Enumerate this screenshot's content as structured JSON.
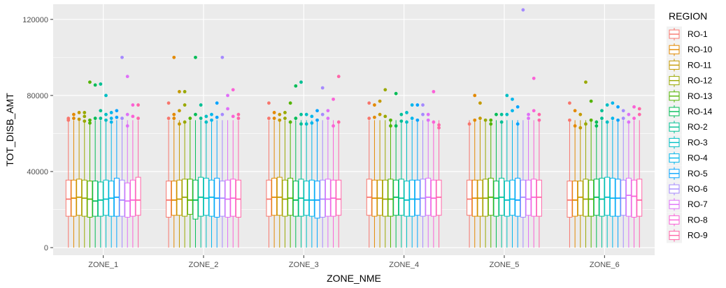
{
  "chart_data": {
    "type": "boxplot",
    "xlabel": "ZONE_NME",
    "ylabel": "TOT_DISB_AMT",
    "categories": [
      "ZONE_1",
      "ZONE_2",
      "ZONE_3",
      "ZONE_4",
      "ZONE_5",
      "ZONE_6"
    ],
    "ylim": [
      -4000,
      128000
    ],
    "yticks": [
      0,
      40000,
      80000,
      120000
    ],
    "ytick_labels": [
      "0",
      "40000",
      "80000",
      "120000"
    ],
    "grid": true,
    "legend": {
      "title": "REGION",
      "position": "right",
      "entries": [
        "RO-1",
        "RO-10",
        "RO-11",
        "RO-12",
        "RO-13",
        "RO-14",
        "RO-2",
        "RO-3",
        "RO-4",
        "RO-5",
        "RO-6",
        "RO-7",
        "RO-8",
        "RO-9"
      ]
    },
    "colors": [
      "#F8766D",
      "#E38900",
      "#C49A00",
      "#99A800",
      "#53B400",
      "#00BC56",
      "#00C094",
      "#00BFC4",
      "#00B6EB",
      "#06A4FF",
      "#A58AFF",
      "#DF70F8",
      "#FB61D7",
      "#FF66A8"
    ],
    "whisker_low": 0,
    "whisker_high": 67000,
    "series": [
      {
        "zone": "ZONE_1",
        "boxes": [
          {
            "region": "RO-1",
            "q1": 16500,
            "median": 25500,
            "q3": 35500,
            "outliers": [
              67000,
              68000
            ]
          },
          {
            "region": "RO-10",
            "q1": 16500,
            "median": 26000,
            "q3": 35500,
            "outliers": [
              68000,
              70000
            ]
          },
          {
            "region": "RO-11",
            "q1": 17000,
            "median": 26500,
            "q3": 36000,
            "outliers": [
              67500,
              71000
            ]
          },
          {
            "region": "RO-12",
            "q1": 16500,
            "median": 26000,
            "q3": 35500,
            "outliers": [
              66500,
              69000,
              71000
            ]
          },
          {
            "region": "RO-13",
            "q1": 16000,
            "median": 25500,
            "q3": 35000,
            "outliers": [
              65500,
              67000,
              87000
            ]
          },
          {
            "region": "RO-14",
            "q1": 16500,
            "median": 24500,
            "q3": 35000,
            "outliers": [
              68000,
              85500
            ]
          },
          {
            "region": "RO-2",
            "q1": 16500,
            "median": 25000,
            "q3": 34500,
            "outliers": [
              68000,
              72000,
              86000
            ]
          },
          {
            "region": "RO-3",
            "q1": 17000,
            "median": 25500,
            "q3": 35500,
            "outliers": [
              67000,
              70000,
              80000
            ]
          },
          {
            "region": "RO-4",
            "q1": 16500,
            "median": 26000,
            "q3": 35000,
            "outliers": [
              66000,
              68000,
              71000
            ]
          },
          {
            "region": "RO-5",
            "q1": 16500,
            "median": 26500,
            "q3": 36500,
            "outliers": [
              68500,
              72000
            ]
          },
          {
            "region": "RO-6",
            "q1": 16500,
            "median": 25000,
            "q3": 35500,
            "outliers": [
              68000,
              100000
            ]
          },
          {
            "region": "RO-7",
            "q1": 16000,
            "median": 24500,
            "q3": 34000,
            "outliers": [
              64000,
              70000,
              90000
            ]
          },
          {
            "region": "RO-8",
            "q1": 16500,
            "median": 25000,
            "q3": 35500,
            "outliers": [
              69000,
              75000
            ]
          },
          {
            "region": "RO-9",
            "q1": 17000,
            "median": 25000,
            "q3": 37000,
            "outliers": [
              68000,
              75000
            ]
          }
        ]
      },
      {
        "zone": "ZONE_2",
        "boxes": [
          {
            "region": "RO-1",
            "q1": 16000,
            "median": 25000,
            "q3": 35000,
            "outliers": [
              68000,
              76000
            ]
          },
          {
            "region": "RO-10",
            "q1": 17000,
            "median": 25000,
            "q3": 35000,
            "outliers": [
              68000,
              70000,
              100000
            ]
          },
          {
            "region": "RO-11",
            "q1": 17000,
            "median": 25500,
            "q3": 35500,
            "outliers": [
              65000,
              72000,
              82000
            ]
          },
          {
            "region": "RO-12",
            "q1": 16500,
            "median": 26500,
            "q3": 36000,
            "outliers": [
              66000,
              75000,
              82000
            ]
          },
          {
            "region": "RO-13",
            "q1": 17500,
            "median": 25000,
            "q3": 36000,
            "outliers": [
              68000
            ]
          },
          {
            "region": "RO-14",
            "q1": 15000,
            "median": 25000,
            "q3": 35500,
            "outliers": [
              70000,
              100000
            ]
          },
          {
            "region": "RO-2",
            "q1": 16500,
            "median": 26500,
            "q3": 37000,
            "outliers": [
              68000,
              75000
            ]
          },
          {
            "region": "RO-3",
            "q1": 17000,
            "median": 26000,
            "q3": 36500,
            "outliers": [
              66000,
              69000
            ]
          },
          {
            "region": "RO-4",
            "q1": 16500,
            "median": 26500,
            "q3": 35500,
            "outliers": [
              67000,
              70000
            ]
          },
          {
            "region": "RO-5",
            "q1": 16000,
            "median": 26000,
            "q3": 36500,
            "outliers": [
              68500,
              76000
            ]
          },
          {
            "region": "RO-6",
            "q1": 16500,
            "median": 26000,
            "q3": 35000,
            "outliers": [
              70000,
              100000
            ]
          },
          {
            "region": "RO-7",
            "q1": 16000,
            "median": 25500,
            "q3": 35500,
            "outliers": [
              73000,
              80000
            ]
          },
          {
            "region": "RO-8",
            "q1": 16500,
            "median": 26000,
            "q3": 36000,
            "outliers": [
              69000,
              83000
            ]
          },
          {
            "region": "RO-9",
            "q1": 16000,
            "median": 25500,
            "q3": 35500,
            "outliers": [
              68000,
              70000
            ]
          }
        ]
      },
      {
        "zone": "ZONE_3",
        "boxes": [
          {
            "region": "RO-1",
            "q1": 16500,
            "median": 25500,
            "q3": 35500,
            "outliers": [
              68000,
              76000
            ]
          },
          {
            "region": "RO-10",
            "q1": 17000,
            "median": 26500,
            "q3": 36500,
            "outliers": [
              68000,
              71000
            ]
          },
          {
            "region": "RO-11",
            "q1": 17000,
            "median": 26500,
            "q3": 37000,
            "outliers": [
              67000,
              70000
            ]
          },
          {
            "region": "RO-12",
            "q1": 16500,
            "median": 25500,
            "q3": 35500,
            "outliers": [
              68000,
              71000
            ]
          },
          {
            "region": "RO-13",
            "q1": 17000,
            "median": 26000,
            "q3": 36500,
            "outliers": [
              66000,
              76000
            ]
          },
          {
            "region": "RO-14",
            "q1": 16500,
            "median": 25000,
            "q3": 35000,
            "outliers": [
              68000,
              85000
            ]
          },
          {
            "region": "RO-2",
            "q1": 16500,
            "median": 26000,
            "q3": 36000,
            "outliers": [
              65000,
              70000,
              87000
            ]
          },
          {
            "region": "RO-3",
            "q1": 17000,
            "median": 25000,
            "q3": 35000,
            "outliers": [
              65000,
              70000
            ]
          },
          {
            "region": "RO-4",
            "q1": 16500,
            "median": 25000,
            "q3": 35500,
            "outliers": [
              65500,
              69000
            ]
          },
          {
            "region": "RO-5",
            "q1": 15500,
            "median": 25000,
            "q3": 35000,
            "outliers": [
              67000,
              72000
            ]
          },
          {
            "region": "RO-6",
            "q1": 16000,
            "median": 25500,
            "q3": 35500,
            "outliers": [
              70000,
              84000
            ]
          },
          {
            "region": "RO-7",
            "q1": 16500,
            "median": 25500,
            "q3": 36000,
            "outliers": [
              68000,
              72000
            ]
          },
          {
            "region": "RO-8",
            "q1": 16500,
            "median": 26000,
            "q3": 35500,
            "outliers": [
              64000,
              78000
            ]
          },
          {
            "region": "RO-9",
            "q1": 17000,
            "median": 25500,
            "q3": 35500,
            "outliers": [
              66000,
              90000
            ]
          }
        ]
      },
      {
        "zone": "ZONE_4",
        "boxes": [
          {
            "region": "RO-1",
            "q1": 17000,
            "median": 26500,
            "q3": 36000,
            "outliers": [
              68000,
              76000
            ]
          },
          {
            "region": "RO-10",
            "q1": 16500,
            "median": 26000,
            "q3": 35500,
            "outliers": [
              68500,
              75000
            ]
          },
          {
            "region": "RO-11",
            "q1": 17000,
            "median": 26000,
            "q3": 35500,
            "outliers": [
              70000,
              77000
            ]
          },
          {
            "region": "RO-12",
            "q1": 16500,
            "median": 25500,
            "q3": 35500,
            "outliers": [
              69000,
              83000
            ]
          },
          {
            "region": "RO-13",
            "q1": 16500,
            "median": 25500,
            "q3": 36000,
            "outliers": [
              64000,
              67000
            ]
          },
          {
            "region": "RO-14",
            "q1": 17000,
            "median": 26500,
            "q3": 35500,
            "outliers": [
              64000,
              81000
            ]
          },
          {
            "region": "RO-2",
            "q1": 17000,
            "median": 26000,
            "q3": 36000,
            "outliers": [
              66500,
              70000
            ]
          },
          {
            "region": "RO-3",
            "q1": 16500,
            "median": 25000,
            "q3": 35000,
            "outliers": [
              66000,
              71000
            ]
          },
          {
            "region": "RO-4",
            "q1": 16500,
            "median": 25500,
            "q3": 35500,
            "outliers": [
              68000,
              75000
            ]
          },
          {
            "region": "RO-5",
            "q1": 17000,
            "median": 25500,
            "q3": 35500,
            "outliers": [
              67000,
              75000
            ]
          },
          {
            "region": "RO-6",
            "q1": 16500,
            "median": 26000,
            "q3": 36000,
            "outliers": [
              70000,
              75000
            ]
          },
          {
            "region": "RO-7",
            "q1": 17000,
            "median": 26500,
            "q3": 36500,
            "outliers": [
              67000,
              70000
            ]
          },
          {
            "region": "RO-8",
            "q1": 16500,
            "median": 26000,
            "q3": 35500,
            "outliers": [
              66000,
              82000
            ]
          },
          {
            "region": "RO-9",
            "q1": 17000,
            "median": 26500,
            "q3": 35500,
            "outliers": [
              63000,
              64500
            ]
          }
        ]
      },
      {
        "zone": "ZONE_5",
        "boxes": [
          {
            "region": "RO-1",
            "q1": 17000,
            "median": 25500,
            "q3": 35500,
            "outliers": [
              65000
            ]
          },
          {
            "region": "RO-10",
            "q1": 16500,
            "median": 26000,
            "q3": 35500,
            "outliers": [
              67000,
              80000
            ]
          },
          {
            "region": "RO-11",
            "q1": 16500,
            "median": 26000,
            "q3": 35500,
            "outliers": [
              68000,
              76000
            ]
          },
          {
            "region": "RO-12",
            "q1": 16500,
            "median": 26000,
            "q3": 36000,
            "outliers": [
              67000
            ]
          },
          {
            "region": "RO-13",
            "q1": 17000,
            "median": 26500,
            "q3": 36500,
            "outliers": [
              65000,
              67000
            ]
          },
          {
            "region": "RO-14",
            "q1": 16500,
            "median": 26000,
            "q3": 35000,
            "outliers": [
              70000
            ]
          },
          {
            "region": "RO-2",
            "q1": 17000,
            "median": 26500,
            "q3": 36500,
            "outliers": [
              66000,
              70000
            ]
          },
          {
            "region": "RO-3",
            "q1": 16500,
            "median": 25000,
            "q3": 35000,
            "outliers": [
              70000,
              80000
            ]
          },
          {
            "region": "RO-4",
            "q1": 17000,
            "median": 25500,
            "q3": 35500,
            "outliers": [
              72000,
              78000
            ]
          },
          {
            "region": "RO-5",
            "q1": 16500,
            "median": 25000,
            "q3": 36500,
            "outliers": [
              65000,
              74000
            ]
          },
          {
            "region": "RO-6",
            "q1": 16000,
            "median": 26500,
            "q3": 35500,
            "outliers": [
              125000
            ]
          },
          {
            "region": "RO-7",
            "q1": 17000,
            "median": 25500,
            "q3": 35500,
            "outliers": [
              68000,
              70000
            ]
          },
          {
            "region": "RO-8",
            "q1": 16500,
            "median": 26500,
            "q3": 36000,
            "outliers": [
              72000,
              89000
            ]
          },
          {
            "region": "RO-9",
            "q1": 16500,
            "median": 26500,
            "q3": 35500,
            "outliers": [
              67000,
              70000
            ]
          }
        ]
      },
      {
        "zone": "ZONE_6",
        "boxes": [
          {
            "region": "RO-1",
            "q1": 16000,
            "median": 25000,
            "q3": 35000,
            "outliers": [
              67000,
              76000
            ]
          },
          {
            "region": "RO-10",
            "q1": 16500,
            "median": 25000,
            "q3": 35000,
            "outliers": [
              64000,
              72000
            ]
          },
          {
            "region": "RO-11",
            "q1": 17000,
            "median": 26500,
            "q3": 35000,
            "outliers": [
              63000,
              70000
            ]
          },
          {
            "region": "RO-12",
            "q1": 16500,
            "median": 25500,
            "q3": 36000,
            "outliers": [
              65000,
              87000
            ]
          },
          {
            "region": "RO-13",
            "q1": 16500,
            "median": 25500,
            "q3": 35500,
            "outliers": [
              67000,
              77000
            ]
          },
          {
            "region": "RO-14",
            "q1": 17000,
            "median": 26500,
            "q3": 36000,
            "outliers": [
              64000,
              66000
            ]
          },
          {
            "region": "RO-2",
            "q1": 16500,
            "median": 25500,
            "q3": 36500,
            "outliers": [
              68000,
              72000
            ]
          },
          {
            "region": "RO-3",
            "q1": 17000,
            "median": 26500,
            "q3": 37000,
            "outliers": [
              66000,
              75000
            ]
          },
          {
            "region": "RO-4",
            "q1": 16500,
            "median": 26000,
            "q3": 36500,
            "outliers": [
              68000,
              76000
            ]
          },
          {
            "region": "RO-5",
            "q1": 16500,
            "median": 26000,
            "q3": 36000,
            "outliers": [
              67000,
              74000
            ]
          },
          {
            "region": "RO-6",
            "q1": 17000,
            "median": 26000,
            "q3": 35500,
            "outliers": [
              68000,
              72000
            ]
          },
          {
            "region": "RO-7",
            "q1": 16500,
            "median": 27500,
            "q3": 36500,
            "outliers": [
              66000,
              70000
            ]
          },
          {
            "region": "RO-8",
            "q1": 16000,
            "median": 27000,
            "q3": 35500,
            "outliers": [
              68000,
              74000
            ]
          },
          {
            "region": "RO-9",
            "q1": 16500,
            "median": 25000,
            "q3": 36000,
            "outliers": [
              70000,
              73000
            ]
          }
        ]
      }
    ]
  }
}
